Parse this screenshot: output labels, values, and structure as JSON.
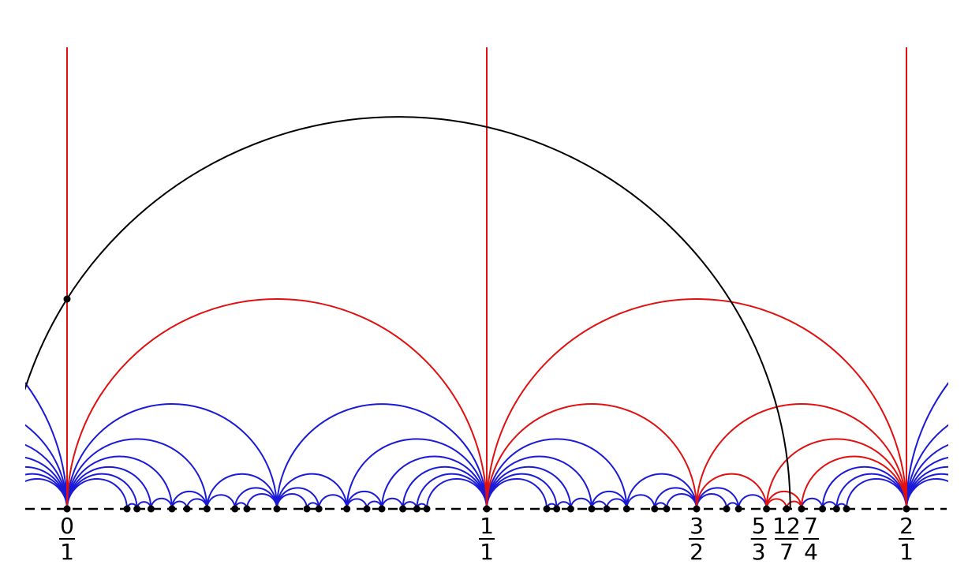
{
  "labels": [
    {
      "numerator": "0",
      "denominator": "1"
    },
    {
      "numerator": "1",
      "denominator": "1"
    },
    {
      "numerator": "3",
      "denominator": "2"
    },
    {
      "numerator": "5",
      "denominator": "3"
    },
    {
      "numerator": "12",
      "denominator": "7"
    },
    {
      "numerator": "7",
      "denominator": "4"
    },
    {
      "numerator": "2",
      "denominator": "1"
    }
  ]
}
